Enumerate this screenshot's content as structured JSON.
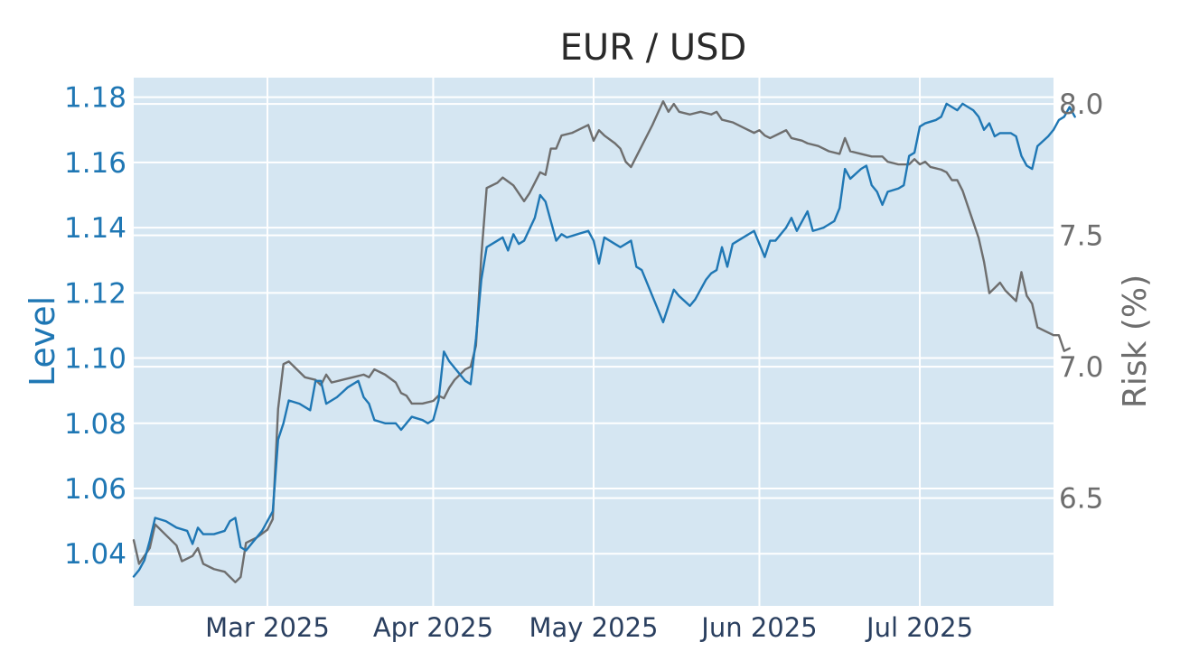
{
  "chart_data": {
    "type": "line",
    "title": "EUR / USD",
    "x_axis": {
      "type": "date",
      "range": [
        "2025-02-04",
        "2025-07-26"
      ],
      "tick_values": [
        "2025-03-01",
        "2025-04-01",
        "2025-05-01",
        "2025-06-01",
        "2025-07-01"
      ],
      "tick_labels": [
        "Mar 2025",
        "Apr 2025",
        "May 2025",
        "Jun 2025",
        "Jul 2025"
      ]
    },
    "y_axis_left": {
      "label": "Level",
      "range": [
        1.024,
        1.186
      ],
      "tick_values": [
        1.04,
        1.06,
        1.08,
        1.1,
        1.12,
        1.14,
        1.16,
        1.18
      ],
      "tick_labels": [
        "1.04",
        "1.06",
        "1.08",
        "1.10",
        "1.12",
        "1.14",
        "1.16",
        "1.18"
      ],
      "color": "#1f77b4"
    },
    "y_axis_right": {
      "label": "Risk (%)",
      "range": [
        6.09,
        8.1
      ],
      "tick_values": [
        6.5,
        7.0,
        7.5,
        8.0
      ],
      "tick_labels": [
        "6.5",
        "7.0",
        "7.5",
        "8.0"
      ],
      "color": "#6e6e6e"
    },
    "grid": true,
    "plot_background": "#d5e6f2",
    "series": [
      {
        "axis": "left",
        "color": "#1f77b4",
        "points": [
          [
            "2025-02-04",
            1.033
          ],
          [
            "2025-02-05",
            1.035
          ],
          [
            "2025-02-06",
            1.038
          ],
          [
            "2025-02-07",
            1.044
          ],
          [
            "2025-02-08",
            1.051
          ],
          [
            "2025-02-10",
            1.05
          ],
          [
            "2025-02-12",
            1.048
          ],
          [
            "2025-02-14",
            1.047
          ],
          [
            "2025-02-15",
            1.043
          ],
          [
            "2025-02-16",
            1.048
          ],
          [
            "2025-02-17",
            1.046
          ],
          [
            "2025-02-19",
            1.046
          ],
          [
            "2025-02-21",
            1.047
          ],
          [
            "2025-02-22",
            1.05
          ],
          [
            "2025-02-23",
            1.051
          ],
          [
            "2025-02-24",
            1.042
          ],
          [
            "2025-02-25",
            1.041
          ],
          [
            "2025-02-26",
            1.043
          ],
          [
            "2025-02-28",
            1.047
          ],
          [
            "2025-03-02",
            1.053
          ],
          [
            "2025-03-03",
            1.075
          ],
          [
            "2025-03-04",
            1.08
          ],
          [
            "2025-03-05",
            1.087
          ],
          [
            "2025-03-07",
            1.086
          ],
          [
            "2025-03-09",
            1.084
          ],
          [
            "2025-03-10",
            1.093
          ],
          [
            "2025-03-11",
            1.093
          ],
          [
            "2025-03-12",
            1.086
          ],
          [
            "2025-03-14",
            1.088
          ],
          [
            "2025-03-16",
            1.091
          ],
          [
            "2025-03-18",
            1.093
          ],
          [
            "2025-03-19",
            1.088
          ],
          [
            "2025-03-20",
            1.086
          ],
          [
            "2025-03-21",
            1.081
          ],
          [
            "2025-03-23",
            1.08
          ],
          [
            "2025-03-25",
            1.08
          ],
          [
            "2025-03-26",
            1.078
          ],
          [
            "2025-03-28",
            1.082
          ],
          [
            "2025-03-30",
            1.081
          ],
          [
            "2025-03-31",
            1.08
          ],
          [
            "2025-04-01",
            1.081
          ],
          [
            "2025-04-02",
            1.087
          ],
          [
            "2025-04-03",
            1.102
          ],
          [
            "2025-04-04",
            1.099
          ],
          [
            "2025-04-06",
            1.095
          ],
          [
            "2025-04-07",
            1.093
          ],
          [
            "2025-04-08",
            1.092
          ],
          [
            "2025-04-09",
            1.106
          ],
          [
            "2025-04-10",
            1.124
          ],
          [
            "2025-04-11",
            1.134
          ],
          [
            "2025-04-13",
            1.136
          ],
          [
            "2025-04-14",
            1.137
          ],
          [
            "2025-04-15",
            1.133
          ],
          [
            "2025-04-16",
            1.138
          ],
          [
            "2025-04-17",
            1.135
          ],
          [
            "2025-04-18",
            1.136
          ],
          [
            "2025-04-20",
            1.143
          ],
          [
            "2025-04-21",
            1.15
          ],
          [
            "2025-04-22",
            1.148
          ],
          [
            "2025-04-23",
            1.142
          ],
          [
            "2025-04-24",
            1.136
          ],
          [
            "2025-04-25",
            1.138
          ],
          [
            "2025-04-26",
            1.137
          ],
          [
            "2025-04-28",
            1.138
          ],
          [
            "2025-04-30",
            1.139
          ],
          [
            "2025-05-01",
            1.136
          ],
          [
            "2025-05-02",
            1.129
          ],
          [
            "2025-05-03",
            1.137
          ],
          [
            "2025-05-05",
            1.135
          ],
          [
            "2025-05-06",
            1.134
          ],
          [
            "2025-05-08",
            1.136
          ],
          [
            "2025-05-09",
            1.128
          ],
          [
            "2025-05-10",
            1.127
          ],
          [
            "2025-05-12",
            1.119
          ],
          [
            "2025-05-14",
            1.111
          ],
          [
            "2025-05-15",
            1.116
          ],
          [
            "2025-05-16",
            1.121
          ],
          [
            "2025-05-17",
            1.119
          ],
          [
            "2025-05-19",
            1.116
          ],
          [
            "2025-05-20",
            1.118
          ],
          [
            "2025-05-22",
            1.124
          ],
          [
            "2025-05-23",
            1.126
          ],
          [
            "2025-05-24",
            1.127
          ],
          [
            "2025-05-25",
            1.134
          ],
          [
            "2025-05-26",
            1.128
          ],
          [
            "2025-05-27",
            1.135
          ],
          [
            "2025-05-29",
            1.137
          ],
          [
            "2025-05-31",
            1.139
          ],
          [
            "2025-06-01",
            1.135
          ],
          [
            "2025-06-02",
            1.131
          ],
          [
            "2025-06-03",
            1.136
          ],
          [
            "2025-06-04",
            1.136
          ],
          [
            "2025-06-06",
            1.14
          ],
          [
            "2025-06-07",
            1.143
          ],
          [
            "2025-06-08",
            1.139
          ],
          [
            "2025-06-09",
            1.142
          ],
          [
            "2025-06-10",
            1.145
          ],
          [
            "2025-06-11",
            1.139
          ],
          [
            "2025-06-13",
            1.14
          ],
          [
            "2025-06-15",
            1.142
          ],
          [
            "2025-06-16",
            1.146
          ],
          [
            "2025-06-17",
            1.158
          ],
          [
            "2025-06-18",
            1.155
          ],
          [
            "2025-06-20",
            1.158
          ],
          [
            "2025-06-21",
            1.159
          ],
          [
            "2025-06-22",
            1.153
          ],
          [
            "2025-06-23",
            1.151
          ],
          [
            "2025-06-24",
            1.147
          ],
          [
            "2025-06-25",
            1.151
          ],
          [
            "2025-06-27",
            1.152
          ],
          [
            "2025-06-28",
            1.153
          ],
          [
            "2025-06-29",
            1.162
          ],
          [
            "2025-06-30",
            1.163
          ],
          [
            "2025-07-01",
            1.171
          ],
          [
            "2025-07-02",
            1.172
          ],
          [
            "2025-07-04",
            1.173
          ],
          [
            "2025-07-05",
            1.174
          ],
          [
            "2025-07-06",
            1.178
          ],
          [
            "2025-07-07",
            1.177
          ],
          [
            "2025-07-08",
            1.176
          ],
          [
            "2025-07-09",
            1.178
          ],
          [
            "2025-07-11",
            1.176
          ],
          [
            "2025-07-12",
            1.174
          ],
          [
            "2025-07-13",
            1.17
          ],
          [
            "2025-07-14",
            1.172
          ],
          [
            "2025-07-15",
            1.168
          ],
          [
            "2025-07-16",
            1.169
          ],
          [
            "2025-07-18",
            1.169
          ],
          [
            "2025-07-19",
            1.168
          ],
          [
            "2025-07-20",
            1.162
          ],
          [
            "2025-07-21",
            1.159
          ],
          [
            "2025-07-22",
            1.158
          ],
          [
            "2025-07-23",
            1.165
          ],
          [
            "2025-07-25",
            1.168
          ],
          [
            "2025-07-26",
            1.17
          ],
          [
            "2025-07-27",
            1.173
          ],
          [
            "2025-07-28",
            1.174
          ],
          [
            "2025-07-29",
            1.177
          ],
          [
            "2025-07-30",
            1.174
          ]
        ]
      },
      {
        "axis": "right",
        "color": "#6e6e6e",
        "points": [
          [
            "2025-02-04",
            6.34
          ],
          [
            "2025-02-05",
            6.25
          ],
          [
            "2025-02-06",
            6.28
          ],
          [
            "2025-02-07",
            6.31
          ],
          [
            "2025-02-08",
            6.4
          ],
          [
            "2025-02-10",
            6.36
          ],
          [
            "2025-02-12",
            6.32
          ],
          [
            "2025-02-13",
            6.26
          ],
          [
            "2025-02-15",
            6.28
          ],
          [
            "2025-02-16",
            6.31
          ],
          [
            "2025-02-17",
            6.25
          ],
          [
            "2025-02-19",
            6.23
          ],
          [
            "2025-02-21",
            6.22
          ],
          [
            "2025-02-22",
            6.2
          ],
          [
            "2025-02-23",
            6.18
          ],
          [
            "2025-02-24",
            6.2
          ],
          [
            "2025-02-25",
            6.33
          ],
          [
            "2025-02-27",
            6.35
          ],
          [
            "2025-03-01",
            6.38
          ],
          [
            "2025-03-02",
            6.42
          ],
          [
            "2025-03-03",
            6.84
          ],
          [
            "2025-03-04",
            7.01
          ],
          [
            "2025-03-05",
            7.02
          ],
          [
            "2025-03-06",
            7.0
          ],
          [
            "2025-03-08",
            6.96
          ],
          [
            "2025-03-10",
            6.95
          ],
          [
            "2025-03-11",
            6.93
          ],
          [
            "2025-03-12",
            6.97
          ],
          [
            "2025-03-13",
            6.94
          ],
          [
            "2025-03-15",
            6.95
          ],
          [
            "2025-03-17",
            6.96
          ],
          [
            "2025-03-19",
            6.97
          ],
          [
            "2025-03-20",
            6.96
          ],
          [
            "2025-03-21",
            6.99
          ],
          [
            "2025-03-23",
            6.97
          ],
          [
            "2025-03-25",
            6.94
          ],
          [
            "2025-03-26",
            6.9
          ],
          [
            "2025-03-27",
            6.89
          ],
          [
            "2025-03-28",
            6.86
          ],
          [
            "2025-03-30",
            6.86
          ],
          [
            "2025-04-01",
            6.87
          ],
          [
            "2025-04-02",
            6.89
          ],
          [
            "2025-04-03",
            6.88
          ],
          [
            "2025-04-04",
            6.92
          ],
          [
            "2025-04-05",
            6.95
          ],
          [
            "2025-04-07",
            6.99
          ],
          [
            "2025-04-08",
            7.0
          ],
          [
            "2025-04-09",
            7.08
          ],
          [
            "2025-04-10",
            7.42
          ],
          [
            "2025-04-11",
            7.68
          ],
          [
            "2025-04-13",
            7.7
          ],
          [
            "2025-04-14",
            7.72
          ],
          [
            "2025-04-16",
            7.69
          ],
          [
            "2025-04-18",
            7.63
          ],
          [
            "2025-04-19",
            7.66
          ],
          [
            "2025-04-21",
            7.74
          ],
          [
            "2025-04-22",
            7.73
          ],
          [
            "2025-04-23",
            7.83
          ],
          [
            "2025-04-24",
            7.83
          ],
          [
            "2025-04-25",
            7.88
          ],
          [
            "2025-04-27",
            7.89
          ],
          [
            "2025-04-29",
            7.91
          ],
          [
            "2025-04-30",
            7.92
          ],
          [
            "2025-05-01",
            7.86
          ],
          [
            "2025-05-02",
            7.9
          ],
          [
            "2025-05-03",
            7.88
          ],
          [
            "2025-05-05",
            7.85
          ],
          [
            "2025-05-06",
            7.83
          ],
          [
            "2025-05-07",
            7.78
          ],
          [
            "2025-05-08",
            7.76
          ],
          [
            "2025-05-09",
            7.8
          ],
          [
            "2025-05-10",
            7.84
          ],
          [
            "2025-05-12",
            7.92
          ],
          [
            "2025-05-14",
            8.01
          ],
          [
            "2025-05-15",
            7.97
          ],
          [
            "2025-05-16",
            8.0
          ],
          [
            "2025-05-17",
            7.97
          ],
          [
            "2025-05-19",
            7.96
          ],
          [
            "2025-05-21",
            7.97
          ],
          [
            "2025-05-23",
            7.96
          ],
          [
            "2025-05-24",
            7.97
          ],
          [
            "2025-05-25",
            7.94
          ],
          [
            "2025-05-27",
            7.93
          ],
          [
            "2025-05-29",
            7.91
          ],
          [
            "2025-05-31",
            7.89
          ],
          [
            "2025-06-01",
            7.9
          ],
          [
            "2025-06-02",
            7.88
          ],
          [
            "2025-06-03",
            7.87
          ],
          [
            "2025-06-05",
            7.89
          ],
          [
            "2025-06-06",
            7.9
          ],
          [
            "2025-06-07",
            7.87
          ],
          [
            "2025-06-09",
            7.86
          ],
          [
            "2025-06-10",
            7.85
          ],
          [
            "2025-06-12",
            7.84
          ],
          [
            "2025-06-14",
            7.82
          ],
          [
            "2025-06-16",
            7.81
          ],
          [
            "2025-06-17",
            7.87
          ],
          [
            "2025-06-18",
            7.82
          ],
          [
            "2025-06-20",
            7.81
          ],
          [
            "2025-06-22",
            7.8
          ],
          [
            "2025-06-24",
            7.8
          ],
          [
            "2025-06-25",
            7.78
          ],
          [
            "2025-06-27",
            7.77
          ],
          [
            "2025-06-29",
            7.77
          ],
          [
            "2025-06-30",
            7.79
          ],
          [
            "2025-07-01",
            7.77
          ],
          [
            "2025-07-02",
            7.78
          ],
          [
            "2025-07-03",
            7.76
          ],
          [
            "2025-07-05",
            7.75
          ],
          [
            "2025-07-06",
            7.74
          ],
          [
            "2025-07-07",
            7.71
          ],
          [
            "2025-07-08",
            7.71
          ],
          [
            "2025-07-09",
            7.67
          ],
          [
            "2025-07-10",
            7.61
          ],
          [
            "2025-07-11",
            7.55
          ],
          [
            "2025-07-12",
            7.49
          ],
          [
            "2025-07-13",
            7.4
          ],
          [
            "2025-07-14",
            7.28
          ],
          [
            "2025-07-15",
            7.3
          ],
          [
            "2025-07-16",
            7.32
          ],
          [
            "2025-07-17",
            7.29
          ],
          [
            "2025-07-19",
            7.25
          ],
          [
            "2025-07-20",
            7.36
          ],
          [
            "2025-07-21",
            7.27
          ],
          [
            "2025-07-22",
            7.24
          ],
          [
            "2025-07-23",
            7.15
          ],
          [
            "2025-07-24",
            7.14
          ],
          [
            "2025-07-26",
            7.12
          ],
          [
            "2025-07-27",
            7.12
          ],
          [
            "2025-07-28",
            7.06
          ],
          [
            "2025-07-29",
            7.07
          ]
        ]
      }
    ]
  }
}
